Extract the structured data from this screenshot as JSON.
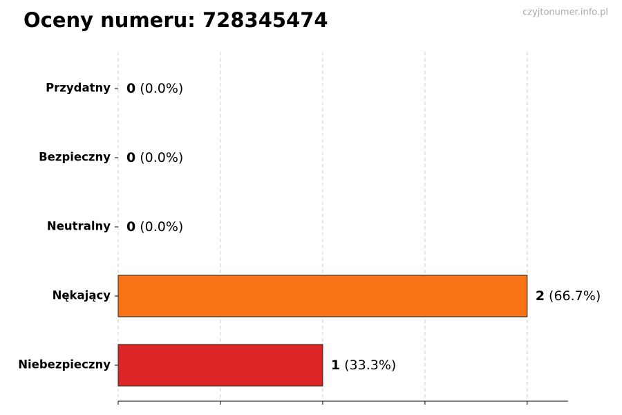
{
  "chart_data": {
    "type": "barh",
    "title": "Oceny numeru: 728345474",
    "watermark": "czyjtonumer.info.pl",
    "categories": [
      "Przydatny",
      "Bezpieczny",
      "Neutralny",
      "Nękający",
      "Niebezpieczny"
    ],
    "values": [
      0,
      0,
      0,
      2,
      1
    ],
    "share_labels": [
      "(0.0%)",
      "(0.0%)",
      "(0.0%)",
      "(66.7%)",
      "(33.3%)"
    ],
    "colors": [
      "#22c55e",
      "#3b82f6",
      "#9ca3af",
      "#f97316",
      "#dc2626"
    ],
    "xlim": [
      0,
      2.2
    ],
    "xticks": [
      0,
      0.5,
      1,
      1.5,
      2
    ],
    "grid": true
  }
}
